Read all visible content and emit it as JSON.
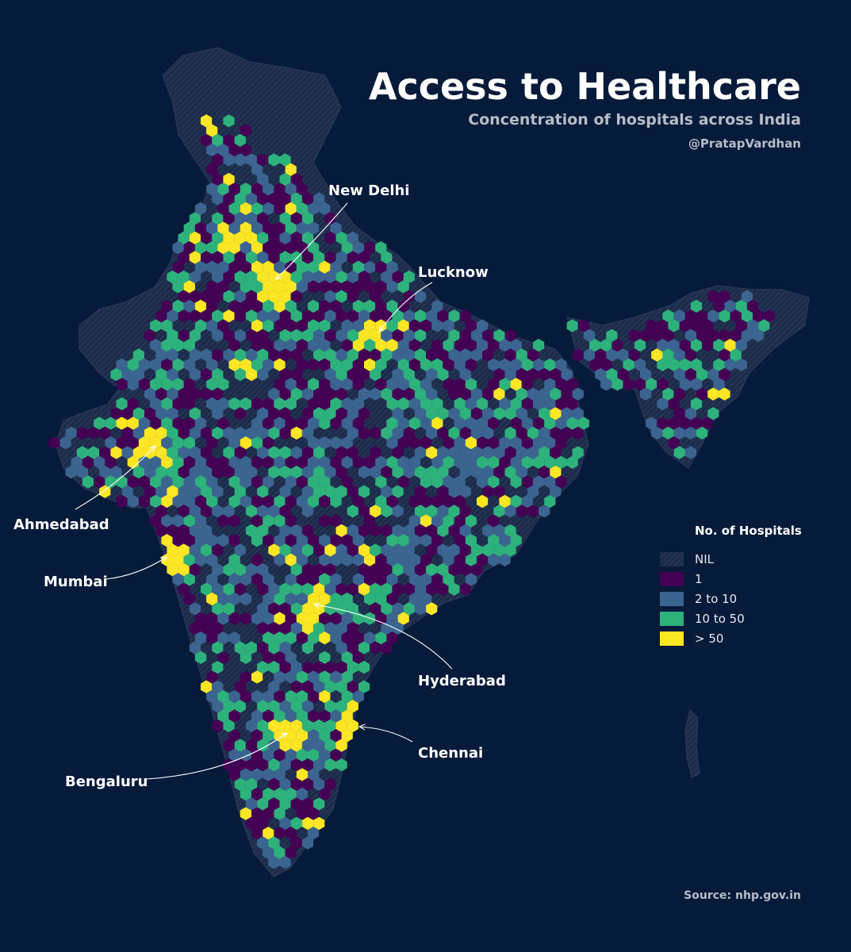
{
  "header": {
    "title": "Access to Healthcare",
    "subtitle": "Concentration of hospitals across India",
    "author": "@PratapVardhan"
  },
  "legend": {
    "title": "No. of Hospitals",
    "items": [
      {
        "label": "NIL",
        "color": "#2a3a5c",
        "pattern": "hatch"
      },
      {
        "label": "1",
        "color": "#440154"
      },
      {
        "label": "2 to 10",
        "color": "#3b6590"
      },
      {
        "label": "10 to 50",
        "color": "#2eb27c"
      },
      {
        "label": "> 50",
        "color": "#fde725"
      }
    ]
  },
  "cities": [
    {
      "name": "New Delhi"
    },
    {
      "name": "Lucknow"
    },
    {
      "name": "Ahmedabad"
    },
    {
      "name": "Mumbai"
    },
    {
      "name": "Hyderabad"
    },
    {
      "name": "Chennai"
    },
    {
      "name": "Bengaluru"
    }
  ],
  "source": "Source: nhp.gov.in",
  "colors": {
    "background": "#061a3a",
    "land_nil": "#1d2b4a",
    "one": "#440154",
    "two_to_ten": "#3b6590",
    "ten_to_fifty": "#2eb27c",
    "over_fifty": "#fde725"
  }
}
